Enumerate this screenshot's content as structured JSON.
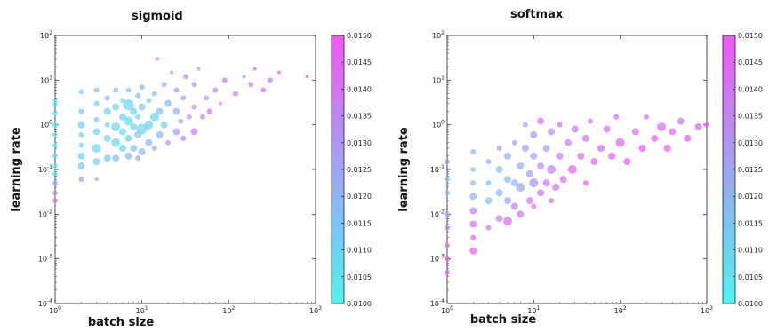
{
  "chart_data": [
    {
      "type": "scatter",
      "title": "sigmoid",
      "xlabel": "batch size",
      "ylabel": "learning rate",
      "xscale": "log",
      "yscale": "log",
      "xlim": [
        1,
        1000
      ],
      "ylim": [
        0.0001,
        100
      ],
      "x_tick_labels": [
        "10^0",
        "10^1",
        "10^2",
        "10^3"
      ],
      "y_tick_labels": [
        "10^-4",
        "10^-3",
        "10^-2",
        "10^-1",
        "10^0",
        "10^1",
        "10^2"
      ],
      "colorbar": {
        "range": [
          0.01,
          0.015
        ],
        "tick_labels": [
          "0.0100",
          "0.0105",
          "0.0110",
          "0.0115",
          "0.0120",
          "0.0125",
          "0.0130",
          "0.0135",
          "0.0140",
          "0.0145",
          "0.0150"
        ],
        "colors": [
          "#4ef3f0",
          "#f055f0"
        ]
      },
      "points": [
        {
          "x": 1,
          "y": 0.02,
          "c": 0.0135,
          "s": 3
        },
        {
          "x": 1,
          "y": 0.03,
          "c": 0.013,
          "s": 3
        },
        {
          "x": 1,
          "y": 0.05,
          "c": 0.012,
          "s": 3
        },
        {
          "x": 1,
          "y": 0.08,
          "c": 0.0105,
          "s": 3
        },
        {
          "x": 1,
          "y": 0.12,
          "c": 0.0103,
          "s": 3
        },
        {
          "x": 1,
          "y": 0.2,
          "c": 0.0102,
          "s": 3
        },
        {
          "x": 1,
          "y": 0.35,
          "c": 0.0101,
          "s": 3
        },
        {
          "x": 1,
          "y": 0.6,
          "c": 0.0102,
          "s": 3
        },
        {
          "x": 1,
          "y": 1.0,
          "c": 0.0101,
          "s": 3
        },
        {
          "x": 1,
          "y": 1.8,
          "c": 0.0103,
          "s": 3
        },
        {
          "x": 1,
          "y": 2.8,
          "c": 0.0102,
          "s": 3
        },
        {
          "x": 1,
          "y": 3.5,
          "c": 0.0104,
          "s": 3
        },
        {
          "x": 2,
          "y": 0.06,
          "c": 0.0125,
          "s": 3
        },
        {
          "x": 2,
          "y": 0.12,
          "c": 0.0115,
          "s": 4
        },
        {
          "x": 2,
          "y": 0.2,
          "c": 0.0108,
          "s": 4
        },
        {
          "x": 2,
          "y": 0.35,
          "c": 0.0106,
          "s": 3
        },
        {
          "x": 2,
          "y": 0.6,
          "c": 0.011,
          "s": 3
        },
        {
          "x": 2,
          "y": 1.0,
          "c": 0.0108,
          "s": 4
        },
        {
          "x": 2,
          "y": 2.0,
          "c": 0.0112,
          "s": 3
        },
        {
          "x": 2,
          "y": 5.5,
          "c": 0.0112,
          "s": 3
        },
        {
          "x": 3,
          "y": 0.06,
          "c": 0.0125,
          "s": 2
        },
        {
          "x": 3,
          "y": 0.15,
          "c": 0.0112,
          "s": 4
        },
        {
          "x": 3,
          "y": 0.3,
          "c": 0.0108,
          "s": 5
        },
        {
          "x": 3,
          "y": 0.7,
          "c": 0.011,
          "s": 4
        },
        {
          "x": 3,
          "y": 1.3,
          "c": 0.0112,
          "s": 3
        },
        {
          "x": 3,
          "y": 3.0,
          "c": 0.0113,
          "s": 3
        },
        {
          "x": 3,
          "y": 6.0,
          "c": 0.0115,
          "s": 3
        },
        {
          "x": 4,
          "y": 0.18,
          "c": 0.0115,
          "s": 4
        },
        {
          "x": 4,
          "y": 0.5,
          "c": 0.011,
          "s": 4
        },
        {
          "x": 4,
          "y": 1.0,
          "c": 0.0112,
          "s": 3
        },
        {
          "x": 4,
          "y": 2.0,
          "c": 0.011,
          "s": 4
        },
        {
          "x": 4,
          "y": 4.0,
          "c": 0.0118,
          "s": 3
        },
        {
          "x": 5,
          "y": 0.18,
          "c": 0.0118,
          "s": 4
        },
        {
          "x": 5,
          "y": 0.4,
          "c": 0.0108,
          "s": 5
        },
        {
          "x": 5,
          "y": 0.9,
          "c": 0.011,
          "s": 5
        },
        {
          "x": 5,
          "y": 2.5,
          "c": 0.0112,
          "s": 4
        },
        {
          "x": 5,
          "y": 6.0,
          "c": 0.0115,
          "s": 3
        },
        {
          "x": 6,
          "y": 0.3,
          "c": 0.0112,
          "s": 4
        },
        {
          "x": 6,
          "y": 0.7,
          "c": 0.0108,
          "s": 4
        },
        {
          "x": 6,
          "y": 1.5,
          "c": 0.011,
          "s": 4
        },
        {
          "x": 6,
          "y": 3.5,
          "c": 0.0113,
          "s": 3
        },
        {
          "x": 7,
          "y": 0.2,
          "c": 0.012,
          "s": 4
        },
        {
          "x": 7,
          "y": 0.5,
          "c": 0.011,
          "s": 4
        },
        {
          "x": 7,
          "y": 1.2,
          "c": 0.0108,
          "s": 5
        },
        {
          "x": 7,
          "y": 2.8,
          "c": 0.011,
          "s": 6
        },
        {
          "x": 7,
          "y": 6.0,
          "c": 0.0115,
          "s": 3
        },
        {
          "x": 8,
          "y": 0.3,
          "c": 0.0115,
          "s": 4
        },
        {
          "x": 8,
          "y": 0.9,
          "c": 0.0112,
          "s": 4
        },
        {
          "x": 8,
          "y": 2.0,
          "c": 0.0112,
          "s": 4
        },
        {
          "x": 9,
          "y": 0.18,
          "c": 0.0125,
          "s": 3
        },
        {
          "x": 9,
          "y": 0.6,
          "c": 0.0115,
          "s": 4
        },
        {
          "x": 9,
          "y": 1.5,
          "c": 0.011,
          "s": 3
        },
        {
          "x": 9,
          "y": 4.5,
          "c": 0.0118,
          "s": 3
        },
        {
          "x": 10,
          "y": 0.25,
          "c": 0.012,
          "s": 4
        },
        {
          "x": 10,
          "y": 0.8,
          "c": 0.011,
          "s": 6
        },
        {
          "x": 10,
          "y": 2.5,
          "c": 0.0113,
          "s": 4
        },
        {
          "x": 10,
          "y": 7.0,
          "c": 0.0118,
          "s": 3
        },
        {
          "x": 12,
          "y": 0.4,
          "c": 0.0118,
          "s": 4
        },
        {
          "x": 12,
          "y": 1.0,
          "c": 0.0112,
          "s": 5
        },
        {
          "x": 12,
          "y": 3.5,
          "c": 0.0115,
          "s": 3
        },
        {
          "x": 14,
          "y": 0.3,
          "c": 0.0125,
          "s": 3
        },
        {
          "x": 14,
          "y": 1.5,
          "c": 0.011,
          "s": 5
        },
        {
          "x": 14,
          "y": 5.0,
          "c": 0.0118,
          "s": 3
        },
        {
          "x": 15,
          "y": 30,
          "c": 0.015,
          "s": 2
        },
        {
          "x": 16,
          "y": 0.6,
          "c": 0.0118,
          "s": 4
        },
        {
          "x": 16,
          "y": 2.0,
          "c": 0.0115,
          "s": 4
        },
        {
          "x": 18,
          "y": 1.0,
          "c": 0.0112,
          "s": 4
        },
        {
          "x": 18,
          "y": 8.0,
          "c": 0.012,
          "s": 3
        },
        {
          "x": 20,
          "y": 0.4,
          "c": 0.0128,
          "s": 3
        },
        {
          "x": 20,
          "y": 3.0,
          "c": 0.0118,
          "s": 4
        },
        {
          "x": 22,
          "y": 15,
          "c": 0.0135,
          "s": 2
        },
        {
          "x": 25,
          "y": 0.7,
          "c": 0.0128,
          "s": 4
        },
        {
          "x": 25,
          "y": 2.0,
          "c": 0.012,
          "s": 4
        },
        {
          "x": 25,
          "y": 6.0,
          "c": 0.0125,
          "s": 3
        },
        {
          "x": 28,
          "y": 1.2,
          "c": 0.0122,
          "s": 3
        },
        {
          "x": 30,
          "y": 0.5,
          "c": 0.0138,
          "s": 3
        },
        {
          "x": 30,
          "y": 4.0,
          "c": 0.0125,
          "s": 3
        },
        {
          "x": 32,
          "y": 12,
          "c": 0.013,
          "s": 3
        },
        {
          "x": 35,
          "y": 1.5,
          "c": 0.0125,
          "s": 3
        },
        {
          "x": 40,
          "y": 0.7,
          "c": 0.0138,
          "s": 4
        },
        {
          "x": 40,
          "y": 2.5,
          "c": 0.013,
          "s": 3
        },
        {
          "x": 40,
          "y": 8.0,
          "c": 0.0128,
          "s": 3
        },
        {
          "x": 45,
          "y": 18,
          "c": 0.0135,
          "s": 2
        },
        {
          "x": 50,
          "y": 1.5,
          "c": 0.0135,
          "s": 3
        },
        {
          "x": 55,
          "y": 4.0,
          "c": 0.013,
          "s": 3
        },
        {
          "x": 60,
          "y": 2.0,
          "c": 0.014,
          "s": 3
        },
        {
          "x": 70,
          "y": 6.0,
          "c": 0.0135,
          "s": 3
        },
        {
          "x": 80,
          "y": 3.0,
          "c": 0.014,
          "s": 2
        },
        {
          "x": 90,
          "y": 10,
          "c": 0.0138,
          "s": 3
        },
        {
          "x": 120,
          "y": 5.0,
          "c": 0.014,
          "s": 3
        },
        {
          "x": 150,
          "y": 12,
          "c": 0.0142,
          "s": 2
        },
        {
          "x": 180,
          "y": 8.0,
          "c": 0.014,
          "s": 3
        },
        {
          "x": 200,
          "y": 18,
          "c": 0.0145,
          "s": 2
        },
        {
          "x": 250,
          "y": 6.0,
          "c": 0.0142,
          "s": 3
        },
        {
          "x": 300,
          "y": 10,
          "c": 0.014,
          "s": 3
        },
        {
          "x": 380,
          "y": 15,
          "c": 0.0148,
          "s": 2
        },
        {
          "x": 800,
          "y": 12,
          "c": 0.015,
          "s": 2
        }
      ]
    },
    {
      "type": "scatter",
      "title": "softmax",
      "xlabel": "batch size",
      "ylabel": "learning rate",
      "xscale": "log",
      "yscale": "log",
      "xlim": [
        1,
        1000
      ],
      "ylim": [
        0.0001,
        100
      ],
      "x_tick_labels": [
        "10^0",
        "10^1",
        "10^2",
        "10^3"
      ],
      "y_tick_labels": [
        "10^-4",
        "10^-3",
        "10^-2",
        "10^-1",
        "10^0",
        "10^1",
        "10^2"
      ],
      "colorbar": {
        "range": [
          0.01,
          0.015
        ],
        "tick_labels": [
          "0.0100",
          "0.0105",
          "0.0110",
          "0.0115",
          "0.0120",
          "0.0125",
          "0.0130",
          "0.0135",
          "0.0140",
          "0.0145",
          "0.0150"
        ],
        "colors": [
          "#4ef3f0",
          "#f055f0"
        ]
      },
      "points": [
        {
          "x": 1,
          "y": 0.0005,
          "c": 0.0145,
          "s": 3
        },
        {
          "x": 1,
          "y": 0.001,
          "c": 0.0148,
          "s": 3
        },
        {
          "x": 1,
          "y": 0.002,
          "c": 0.014,
          "s": 3
        },
        {
          "x": 1,
          "y": 0.005,
          "c": 0.0135,
          "s": 3
        },
        {
          "x": 1,
          "y": 0.01,
          "c": 0.0128,
          "s": 3
        },
        {
          "x": 1,
          "y": 0.03,
          "c": 0.0118,
          "s": 3
        },
        {
          "x": 1,
          "y": 0.06,
          "c": 0.0112,
          "s": 3
        },
        {
          "x": 1,
          "y": 0.15,
          "c": 0.013,
          "s": 3
        },
        {
          "x": 2,
          "y": 0.0015,
          "c": 0.0148,
          "s": 4
        },
        {
          "x": 2,
          "y": 0.003,
          "c": 0.0145,
          "s": 3
        },
        {
          "x": 2,
          "y": 0.006,
          "c": 0.014,
          "s": 4
        },
        {
          "x": 2,
          "y": 0.012,
          "c": 0.0135,
          "s": 4
        },
        {
          "x": 2,
          "y": 0.025,
          "c": 0.012,
          "s": 4
        },
        {
          "x": 2,
          "y": 0.05,
          "c": 0.0118,
          "s": 3
        },
        {
          "x": 2,
          "y": 0.1,
          "c": 0.0115,
          "s": 3
        },
        {
          "x": 2,
          "y": 0.25,
          "c": 0.0118,
          "s": 3
        },
        {
          "x": 3,
          "y": 0.005,
          "c": 0.014,
          "s": 3
        },
        {
          "x": 3,
          "y": 0.02,
          "c": 0.0118,
          "s": 4
        },
        {
          "x": 3,
          "y": 0.05,
          "c": 0.0115,
          "s": 3
        },
        {
          "x": 3,
          "y": 0.15,
          "c": 0.0122,
          "s": 3
        },
        {
          "x": 4,
          "y": 0.008,
          "c": 0.0138,
          "s": 4
        },
        {
          "x": 4,
          "y": 0.03,
          "c": 0.0118,
          "s": 4
        },
        {
          "x": 4,
          "y": 0.1,
          "c": 0.0115,
          "s": 4
        },
        {
          "x": 4,
          "y": 0.3,
          "c": 0.0125,
          "s": 3
        },
        {
          "x": 5,
          "y": 0.007,
          "c": 0.0142,
          "s": 5
        },
        {
          "x": 5,
          "y": 0.02,
          "c": 0.0125,
          "s": 4
        },
        {
          "x": 5,
          "y": 0.06,
          "c": 0.0118,
          "s": 4
        },
        {
          "x": 5,
          "y": 0.2,
          "c": 0.012,
          "s": 4
        },
        {
          "x": 6,
          "y": 0.015,
          "c": 0.0135,
          "s": 4
        },
        {
          "x": 6,
          "y": 0.05,
          "c": 0.012,
          "s": 4
        },
        {
          "x": 6,
          "y": 0.4,
          "c": 0.0125,
          "s": 3
        },
        {
          "x": 7,
          "y": 0.01,
          "c": 0.014,
          "s": 4
        },
        {
          "x": 7,
          "y": 0.04,
          "c": 0.0125,
          "s": 5
        },
        {
          "x": 7,
          "y": 0.12,
          "c": 0.0122,
          "s": 4
        },
        {
          "x": 8,
          "y": 0.3,
          "c": 0.0128,
          "s": 4
        },
        {
          "x": 8,
          "y": 1.0,
          "c": 0.013,
          "s": 3
        },
        {
          "x": 9,
          "y": 0.02,
          "c": 0.0138,
          "s": 4
        },
        {
          "x": 9,
          "y": 0.08,
          "c": 0.0128,
          "s": 4
        },
        {
          "x": 10,
          "y": 0.015,
          "c": 0.0142,
          "s": 3
        },
        {
          "x": 10,
          "y": 0.05,
          "c": 0.013,
          "s": 5
        },
        {
          "x": 10,
          "y": 0.2,
          "c": 0.0125,
          "s": 4
        },
        {
          "x": 10,
          "y": 0.6,
          "c": 0.013,
          "s": 4
        },
        {
          "x": 12,
          "y": 0.03,
          "c": 0.014,
          "s": 4
        },
        {
          "x": 12,
          "y": 0.12,
          "c": 0.0132,
          "s": 4
        },
        {
          "x": 12,
          "y": 1.2,
          "c": 0.014,
          "s": 4
        },
        {
          "x": 14,
          "y": 0.05,
          "c": 0.0138,
          "s": 4
        },
        {
          "x": 14,
          "y": 0.3,
          "c": 0.0128,
          "s": 4
        },
        {
          "x": 16,
          "y": 0.02,
          "c": 0.0145,
          "s": 3
        },
        {
          "x": 16,
          "y": 0.1,
          "c": 0.0135,
          "s": 5
        },
        {
          "x": 16,
          "y": 0.7,
          "c": 0.0132,
          "s": 4
        },
        {
          "x": 18,
          "y": 0.04,
          "c": 0.0142,
          "s": 4
        },
        {
          "x": 20,
          "y": 0.2,
          "c": 0.0138,
          "s": 4
        },
        {
          "x": 20,
          "y": 1.0,
          "c": 0.014,
          "s": 3
        },
        {
          "x": 22,
          "y": 0.06,
          "c": 0.0145,
          "s": 4
        },
        {
          "x": 25,
          "y": 0.4,
          "c": 0.0135,
          "s": 4
        },
        {
          "x": 28,
          "y": 0.1,
          "c": 0.0145,
          "s": 5
        },
        {
          "x": 30,
          "y": 0.8,
          "c": 0.0138,
          "s": 4
        },
        {
          "x": 35,
          "y": 0.2,
          "c": 0.0142,
          "s": 4
        },
        {
          "x": 40,
          "y": 0.05,
          "c": 0.0148,
          "s": 3
        },
        {
          "x": 40,
          "y": 0.5,
          "c": 0.014,
          "s": 4
        },
        {
          "x": 45,
          "y": 1.2,
          "c": 0.0138,
          "s": 3
        },
        {
          "x": 50,
          "y": 0.15,
          "c": 0.0145,
          "s": 4
        },
        {
          "x": 60,
          "y": 0.3,
          "c": 0.0142,
          "s": 4
        },
        {
          "x": 70,
          "y": 0.8,
          "c": 0.014,
          "s": 4
        },
        {
          "x": 80,
          "y": 0.2,
          "c": 0.0148,
          "s": 4
        },
        {
          "x": 90,
          "y": 1.5,
          "c": 0.0138,
          "s": 3
        },
        {
          "x": 100,
          "y": 0.4,
          "c": 0.0145,
          "s": 5
        },
        {
          "x": 120,
          "y": 0.15,
          "c": 0.0148,
          "s": 4
        },
        {
          "x": 150,
          "y": 0.7,
          "c": 0.0142,
          "s": 4
        },
        {
          "x": 180,
          "y": 0.3,
          "c": 0.0148,
          "s": 4
        },
        {
          "x": 200,
          "y": 1.5,
          "c": 0.014,
          "s": 3
        },
        {
          "x": 250,
          "y": 0.5,
          "c": 0.0145,
          "s": 4
        },
        {
          "x": 300,
          "y": 0.9,
          "c": 0.0142,
          "s": 5
        },
        {
          "x": 350,
          "y": 0.3,
          "c": 0.0148,
          "s": 4
        },
        {
          "x": 400,
          "y": 0.7,
          "c": 0.0145,
          "s": 4
        },
        {
          "x": 500,
          "y": 1.2,
          "c": 0.014,
          "s": 4
        },
        {
          "x": 600,
          "y": 0.5,
          "c": 0.0148,
          "s": 4
        },
        {
          "x": 800,
          "y": 0.9,
          "c": 0.0145,
          "s": 4
        },
        {
          "x": 1000,
          "y": 1.0,
          "c": 0.0148,
          "s": 3
        }
      ]
    }
  ]
}
